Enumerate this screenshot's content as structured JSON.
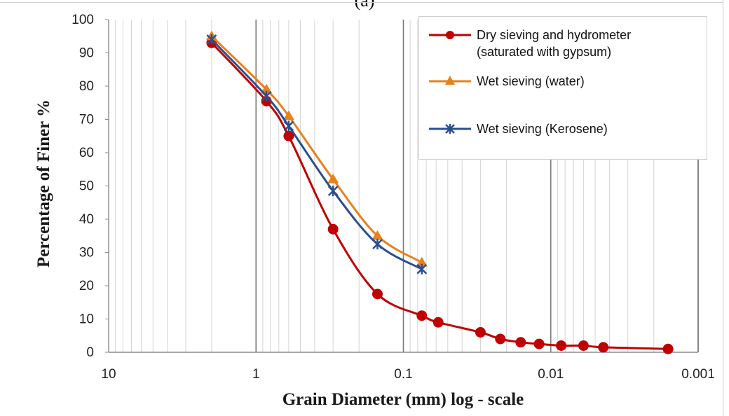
{
  "figure_label": "(a)",
  "chart_data": {
    "type": "line",
    "xlabel": "Grain Diameter (mm) log - scale",
    "ylabel": "Percentage of Finer %",
    "x_scale": "log",
    "x_reversed": true,
    "xlim": [
      10,
      0.001
    ],
    "ylim": [
      0,
      100
    ],
    "x_ticks": [
      "10",
      "1",
      "0.1",
      "0.01",
      "0.001"
    ],
    "y_ticks": [
      "0",
      "10",
      "20",
      "30",
      "40",
      "50",
      "60",
      "70",
      "80",
      "90",
      "100"
    ],
    "grid": "vertical log gridlines",
    "legend_position": "top-right",
    "series": [
      {
        "name": "Dry sieving and hydrometer\n(saturated with gypsum)",
        "color": "#c00000",
        "marker": "circle",
        "x": [
          2.0,
          0.85,
          0.6,
          0.3,
          0.15,
          0.075,
          0.058,
          0.03,
          0.022,
          0.016,
          0.012,
          0.0085,
          0.006,
          0.0044,
          0.0016
        ],
        "y": [
          93,
          75.5,
          65,
          37,
          17.5,
          11,
          9,
          6,
          4,
          3,
          2.5,
          2,
          2,
          1.5,
          1
        ]
      },
      {
        "name": "Wet sieving (water)",
        "color": "#e8801c",
        "marker": "triangle",
        "x": [
          2.0,
          0.85,
          0.6,
          0.3,
          0.15,
          0.075
        ],
        "y": [
          95,
          79,
          71,
          52,
          35,
          27
        ]
      },
      {
        "name": "Wet sieving (Kerosene)",
        "color": "#2a4f8f",
        "marker": "x",
        "x": [
          2.0,
          0.85,
          0.6,
          0.3,
          0.15,
          0.075
        ],
        "y": [
          94,
          77,
          68,
          48.5,
          32.5,
          25
        ]
      }
    ]
  }
}
